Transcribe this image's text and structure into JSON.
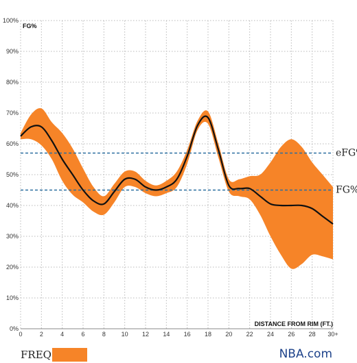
{
  "chart_data": {
    "type": "line",
    "ylabel": "FG%",
    "xlabel": "DISTANCE FROM RIM (FT.)",
    "xlim": [
      0,
      30
    ],
    "ylim": [
      0,
      100
    ],
    "x_ticks": [
      0,
      2,
      4,
      6,
      8,
      10,
      12,
      14,
      16,
      18,
      20,
      22,
      24,
      26,
      28,
      30
    ],
    "x_tick_labels": [
      "0",
      "2",
      "4",
      "6",
      "8",
      "10",
      "12",
      "14",
      "16",
      "18",
      "20",
      "22",
      "24",
      "26",
      "28",
      "30+"
    ],
    "y_ticks": [
      0,
      10,
      20,
      30,
      40,
      50,
      60,
      70,
      80,
      90,
      100
    ],
    "y_tick_labels": [
      "0%",
      "10%",
      "20%",
      "30%",
      "40%",
      "50%",
      "60%",
      "70%",
      "80%",
      "90%",
      "100%"
    ],
    "grid": true,
    "series": [
      {
        "kind": "line",
        "color": "#111111",
        "x": [
          0,
          1,
          2,
          3,
          4,
          5,
          6,
          7,
          8,
          9,
          10,
          11,
          12,
          13,
          14,
          15,
          16,
          17,
          18,
          19,
          20,
          21,
          22,
          23,
          24,
          25,
          26,
          27,
          28,
          29,
          30
        ],
        "y": [
          62.5,
          65.5,
          65.5,
          61,
          55,
          50,
          45,
          41.5,
          40.5,
          44.5,
          48.5,
          48.5,
          46,
          45,
          46,
          48.5,
          56,
          66,
          68.5,
          58,
          46.5,
          45.5,
          45.5,
          43,
          40.5,
          40,
          40,
          40,
          39,
          36.5,
          34
        ]
      },
      {
        "kind": "band",
        "color": "#f68428",
        "x": [
          0,
          1,
          2,
          3,
          4,
          5,
          6,
          7,
          8,
          9,
          10,
          11,
          12,
          13,
          14,
          15,
          16,
          17,
          18,
          19,
          20,
          21,
          22,
          23,
          24,
          25,
          26,
          27,
          28,
          29,
          30
        ],
        "upper": [
          63.5,
          69.5,
          71.5,
          67,
          63.5,
          58.5,
          52,
          46,
          43,
          47,
          51,
          51,
          48,
          46.5,
          48,
          51,
          58,
          67.5,
          70.5,
          60,
          48.5,
          48.5,
          49.5,
          50,
          54,
          59,
          61.5,
          59,
          54,
          50,
          46
        ],
        "lower": [
          61.5,
          61.5,
          59.5,
          55,
          48,
          43.5,
          41,
          38,
          37,
          41,
          46,
          46,
          44,
          43,
          44,
          46,
          53.5,
          64.5,
          66.5,
          55.5,
          44.5,
          43,
          42,
          37,
          30,
          24,
          19.5,
          21,
          24,
          23.5,
          22.5
        ]
      }
    ],
    "reference_lines": [
      {
        "label": "eFG%",
        "value": 57,
        "color": "#2a6fa0"
      },
      {
        "label": "FG%",
        "value": 45,
        "color": "#2a6fa0"
      }
    ]
  },
  "legend": {
    "label": "FREQ:",
    "color": "#f68428"
  },
  "brand": "NBA.com"
}
